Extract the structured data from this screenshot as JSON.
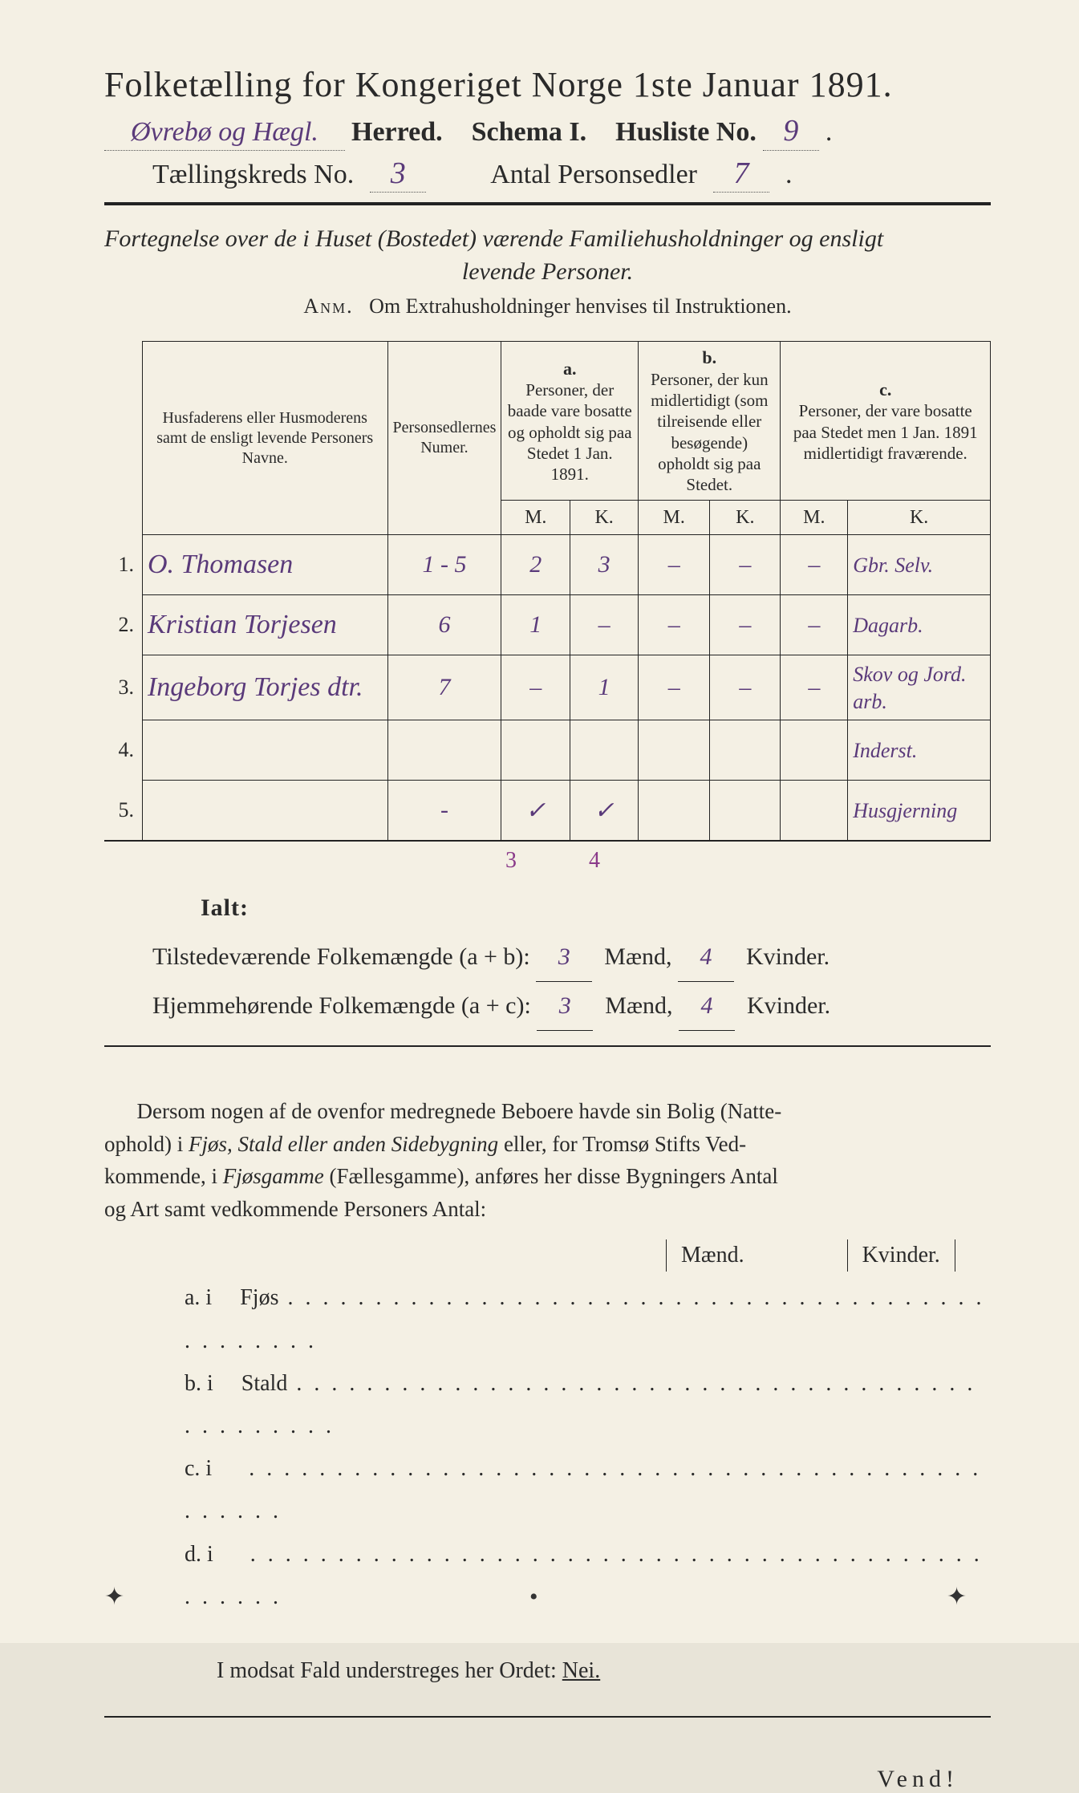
{
  "title": "Folketælling for Kongeriget Norge 1ste Januar 1891.",
  "line2": {
    "herred_hw": "Øvrebø og Hægl.",
    "herred_label": "Herred.",
    "schema": "Schema I.",
    "husliste_label": "Husliste No.",
    "husliste_no": "9"
  },
  "line3": {
    "kreds_label": "Tællingskreds No.",
    "kreds_no": "3",
    "antal_label": "Antal Personsedler",
    "antal_no": "7"
  },
  "subhead_a": "Fortegnelse over de i Huset (Bostedet) værende Familiehusholdninger og ensligt",
  "subhead_b": "levende Personer.",
  "anm_label": "Anm.",
  "anm_text": "Om Extrahusholdninger henvises til Instruktionen.",
  "head": {
    "col1": "Husfaderens eller Husmoderens samt de ensligt levende Personers Navne.",
    "col2": "Personsedlernes Numer.",
    "a": "a.",
    "a_txt": "Personer, der baade vare bosatte og opholdt sig paa Stedet 1 Jan. 1891.",
    "b": "b.",
    "b_txt": "Personer, der kun midlertidigt (som tilreisende eller besøgende) opholdt sig paa Stedet.",
    "c": "c.",
    "c_txt": "Personer, der vare bosatte paa Stedet men 1 Jan. 1891 midlertidigt fraværende.",
    "M": "M.",
    "K": "K."
  },
  "rows": [
    {
      "n": "1.",
      "name": "O. Thomasen",
      "num": "1 - 5",
      "aM": "2",
      "aK": "3",
      "bM": "–",
      "bK": "–",
      "cM": "–",
      "note": "Gbr. Selv."
    },
    {
      "n": "2.",
      "name": "Kristian Torjesen",
      "num": "6",
      "aM": "1",
      "aK": "–",
      "bM": "–",
      "bK": "–",
      "cM": "–",
      "note": "Dagarb."
    },
    {
      "n": "3.",
      "name": "Ingeborg Torjes dtr.",
      "num": "7",
      "aM": "–",
      "aK": "1",
      "bM": "–",
      "bK": "–",
      "cM": "–",
      "note": "Skov og Jord. arb."
    },
    {
      "n": "4.",
      "name": "",
      "num": "",
      "aM": "",
      "aK": "",
      "bM": "",
      "bK": "",
      "cM": "",
      "note": "Inderst."
    },
    {
      "n": "5.",
      "name": "",
      "num": "-",
      "aM": "✓",
      "aK": "✓",
      "bM": "",
      "bK": "",
      "cM": "",
      "note": "Husgjerning"
    }
  ],
  "below": {
    "m": "3",
    "k": "4"
  },
  "ialt": "Ialt:",
  "totals": {
    "l1a": "Tilstedeværende Folkemængde (a + b):",
    "l2a": "Hjemmehørende Folkemængde (a + c):",
    "m1": "3",
    "k1": "4",
    "m2": "3",
    "k2": "4",
    "M": "Mænd,",
    "K": "Kvinder."
  },
  "para": "Dersom nogen af de ovenfor medregnede Beboere havde sin Bolig (Natteophold) i Fjøs, Stald eller anden Sidebygning eller, for Tromsø Stifts Vedkommende, i Fjøsgamme (Fællesgamme), anføres her disse Bygningers Antal og Art samt vedkommende Personers Antal:",
  "mkhead": {
    "M": "Mænd.",
    "K": "Kvinder."
  },
  "sublist": [
    {
      "p": "a.  i",
      "label": "Fjøs"
    },
    {
      "p": "b.  i",
      "label": "Stald"
    },
    {
      "p": "c.  i",
      "label": ""
    },
    {
      "p": "d.  i",
      "label": ""
    }
  ],
  "modsat_a": "I modsat Fald understreges her Ordet:",
  "modsat_b": "Nei.",
  "vend": "Vend!"
}
